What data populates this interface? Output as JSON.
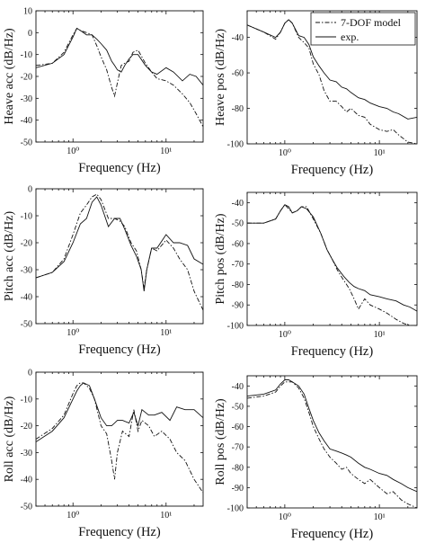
{
  "legend": {
    "model": "7-DOF model",
    "exp": "exp."
  },
  "chart_data": [
    {
      "type": "line",
      "ylabel": "Heave acc (dB/Hz)",
      "xlabel": "Frequency (Hz)",
      "xscale": "log",
      "xlim": [
        0.4,
        25
      ],
      "ylim": [
        -50,
        10
      ],
      "yticks": [
        -50,
        -40,
        -30,
        -20,
        -10,
        0,
        10
      ],
      "xticks": [
        {
          "value": 1,
          "label": "10⁰"
        },
        {
          "value": 10,
          "label": "10¹"
        }
      ],
      "series": [
        {
          "key": "model",
          "x": [
            0.4,
            0.6,
            0.8,
            1.0,
            1.1,
            1.2,
            1.4,
            1.6,
            1.8,
            2.0,
            2.3,
            2.6,
            2.8,
            3.0,
            3.3,
            3.6,
            4.0,
            4.4,
            5.0,
            6.0,
            7.0,
            8.0,
            10,
            12,
            15,
            18,
            21,
            25
          ],
          "y": [
            -15,
            -14,
            -9,
            -1,
            2,
            1,
            0,
            -1,
            -6,
            -11,
            -17,
            -25,
            -29,
            -23,
            -15,
            -14,
            -13,
            -9,
            -8,
            -14,
            -18,
            -21,
            -22,
            -24,
            -28,
            -32,
            -37,
            -43
          ]
        },
        {
          "key": "exp",
          "x": [
            0.4,
            0.6,
            0.8,
            1.0,
            1.1,
            1.2,
            1.4,
            1.6,
            1.8,
            2.0,
            2.3,
            2.6,
            2.8,
            3.0,
            3.3,
            3.6,
            4.0,
            4.4,
            5.0,
            6.0,
            7.0,
            8.0,
            10,
            12,
            15,
            18,
            21,
            25
          ],
          "y": [
            -16,
            -14,
            -10,
            -2,
            2,
            1,
            -1,
            -1,
            -3,
            -5,
            -8,
            -13,
            -15,
            -17,
            -18,
            -15,
            -12,
            -10,
            -10,
            -15,
            -18,
            -19,
            -16,
            -18,
            -22,
            -19,
            -20,
            -24
          ]
        }
      ]
    },
    {
      "type": "line",
      "ylabel": "Heave pos (dB/Hz)",
      "xlabel": "Frequency (Hz)",
      "xscale": "log",
      "xlim": [
        0.4,
        25
      ],
      "ylim": [
        -100,
        -25
      ],
      "yticks": [
        -100,
        -80,
        -60,
        -40
      ],
      "xticks": [
        {
          "value": 1,
          "label": "10⁰"
        },
        {
          "value": 10,
          "label": "10¹"
        }
      ],
      "series": [
        {
          "key": "model",
          "x": [
            0.4,
            0.6,
            0.8,
            0.9,
            1.0,
            1.1,
            1.2,
            1.4,
            1.6,
            1.8,
            2.0,
            2.3,
            2.6,
            3.0,
            3.5,
            4.0,
            4.5,
            5.0,
            6.0,
            7.0,
            8.0,
            10,
            12,
            14,
            16,
            20,
            25
          ],
          "y": [
            -33,
            -37,
            -41,
            -37,
            -32,
            -30,
            -32,
            -40,
            -43,
            -46,
            -55,
            -61,
            -70,
            -76,
            -76,
            -79,
            -82,
            -80,
            -84,
            -85,
            -89,
            -92,
            -93,
            -92,
            -95,
            -99,
            -100
          ]
        },
        {
          "key": "exp",
          "x": [
            0.4,
            0.6,
            0.8,
            0.9,
            1.0,
            1.1,
            1.2,
            1.4,
            1.6,
            1.8,
            2.0,
            2.3,
            2.6,
            3.0,
            3.5,
            4.0,
            4.5,
            5.0,
            6.0,
            7.0,
            8.0,
            10,
            12,
            14,
            16,
            20,
            25
          ],
          "y": [
            -33,
            -37,
            -40,
            -37,
            -32,
            -30,
            -32,
            -39,
            -40,
            -44,
            -51,
            -56,
            -60,
            -64,
            -65,
            -68,
            -69,
            -71,
            -74,
            -75,
            -77,
            -79,
            -80,
            -82,
            -83,
            -86,
            -85
          ]
        }
      ]
    },
    {
      "type": "line",
      "ylabel": "Pitch acc (dB/Hz)",
      "xlabel": "Frequency (Hz)",
      "xscale": "log",
      "xlim": [
        0.4,
        25
      ],
      "ylim": [
        -50,
        0
      ],
      "yticks": [
        -50,
        -40,
        -30,
        -20,
        -10,
        0
      ],
      "xticks": [
        {
          "value": 1,
          "label": "10⁰"
        },
        {
          "value": 10,
          "label": "10¹"
        }
      ],
      "series": [
        {
          "key": "model",
          "x": [
            0.4,
            0.6,
            0.8,
            1.0,
            1.2,
            1.4,
            1.6,
            1.8,
            2.0,
            2.4,
            2.8,
            3.2,
            3.6,
            4.2,
            4.8,
            5.4,
            5.8,
            6.2,
            7.0,
            8.0,
            10,
            12,
            14,
            17,
            20,
            25
          ],
          "y": [
            -33,
            -31,
            -26,
            -17,
            -9,
            -6,
            -3,
            -2,
            -4,
            -11,
            -11,
            -12,
            -14,
            -20,
            -23,
            -30,
            -37,
            -30,
            -22,
            -23,
            -19,
            -22,
            -26,
            -30,
            -38,
            -45
          ]
        },
        {
          "key": "exp",
          "x": [
            0.4,
            0.6,
            0.8,
            1.0,
            1.2,
            1.4,
            1.6,
            1.8,
            2.0,
            2.4,
            2.8,
            3.2,
            3.6,
            4.2,
            4.8,
            5.4,
            5.8,
            6.2,
            7.0,
            8.0,
            10,
            12,
            14,
            17,
            20,
            25
          ],
          "y": [
            -33,
            -31,
            -27,
            -20,
            -13,
            -11,
            -5,
            -3,
            -6,
            -14,
            -11,
            -11,
            -15,
            -21,
            -25,
            -30,
            -38,
            -30,
            -22,
            -22,
            -17,
            -20,
            -20,
            -21,
            -26,
            -28
          ]
        }
      ]
    },
    {
      "type": "line",
      "ylabel": "Pitch pos (dB/Hz)",
      "xlabel": "Frequency (Hz)",
      "xscale": "log",
      "xlim": [
        0.4,
        25
      ],
      "ylim": [
        -100,
        -35
      ],
      "yticks": [
        -100,
        -90,
        -80,
        -70,
        -60,
        -50,
        -40
      ],
      "xticks": [
        {
          "value": 1,
          "label": "10⁰"
        },
        {
          "value": 10,
          "label": "10¹"
        }
      ],
      "series": [
        {
          "key": "model",
          "x": [
            0.4,
            0.6,
            0.8,
            0.9,
            1.0,
            1.1,
            1.2,
            1.35,
            1.5,
            1.7,
            2.0,
            2.4,
            2.8,
            3.2,
            3.6,
            4.2,
            4.8,
            5.4,
            6.0,
            7.0,
            8.0,
            10,
            12,
            15,
            18,
            21,
            25
          ],
          "y": [
            -50,
            -50,
            -48,
            -44,
            -41,
            -43,
            -45,
            -44,
            -42,
            -42,
            -48,
            -55,
            -63,
            -68,
            -73,
            -78,
            -82,
            -87,
            -92,
            -87,
            -90,
            -92,
            -94,
            -97,
            -99,
            -100,
            -100
          ]
        },
        {
          "key": "exp",
          "x": [
            0.4,
            0.6,
            0.8,
            0.9,
            1.0,
            1.1,
            1.2,
            1.35,
            1.5,
            1.7,
            2.0,
            2.4,
            2.8,
            3.2,
            3.6,
            4.2,
            4.8,
            5.4,
            6.0,
            7.0,
            8.0,
            10,
            12,
            15,
            18,
            21,
            25
          ],
          "y": [
            -50,
            -50,
            -48,
            -44,
            -41,
            -42,
            -45,
            -44,
            -42,
            -43,
            -47,
            -55,
            -63,
            -68,
            -72,
            -76,
            -79,
            -81,
            -82,
            -83,
            -85,
            -86,
            -87,
            -88,
            -90,
            -91,
            -93
          ]
        }
      ]
    },
    {
      "type": "line",
      "ylabel": "Roll acc (dB/Hz)",
      "xlabel": "Frequency (Hz)",
      "xscale": "log",
      "xlim": [
        0.4,
        25
      ],
      "ylim": [
        -50,
        0
      ],
      "yticks": [
        -50,
        -40,
        -30,
        -20,
        -10,
        0
      ],
      "xticks": [
        {
          "value": 1,
          "label": "10⁰"
        },
        {
          "value": 10,
          "label": "10¹"
        }
      ],
      "series": [
        {
          "key": "model",
          "x": [
            0.4,
            0.6,
            0.8,
            1.0,
            1.1,
            1.2,
            1.3,
            1.5,
            1.7,
            2.0,
            2.3,
            2.6,
            2.8,
            3.0,
            3.4,
            4.0,
            4.5,
            5.0,
            5.5,
            6.5,
            7.5,
            9,
            11,
            13,
            16,
            20,
            25
          ],
          "y": [
            -25,
            -21,
            -16,
            -8,
            -5,
            -4,
            -4,
            -6,
            -10,
            -20,
            -23,
            -33,
            -40,
            -30,
            -22,
            -24,
            -14,
            -22,
            -18,
            -20,
            -24,
            -22,
            -25,
            -30,
            -33,
            -40,
            -45
          ]
        },
        {
          "key": "exp",
          "x": [
            0.4,
            0.6,
            0.8,
            1.0,
            1.1,
            1.2,
            1.3,
            1.5,
            1.7,
            2.0,
            2.3,
            2.6,
            2.8,
            3.0,
            3.4,
            4.0,
            4.5,
            5.0,
            5.5,
            6.5,
            7.5,
            9,
            11,
            13,
            16,
            20,
            25
          ],
          "y": [
            -26,
            -22,
            -17,
            -10,
            -7,
            -5,
            -4,
            -5,
            -10,
            -17,
            -20,
            -20,
            -19,
            -18,
            -18,
            -19,
            -15,
            -20,
            -14,
            -16,
            -16,
            -15,
            -18,
            -13,
            -14,
            -14,
            -17
          ]
        }
      ]
    },
    {
      "type": "line",
      "ylabel": "Roll pos (dB/Hz)",
      "xlabel": "Frequency (Hz)",
      "xscale": "log",
      "xlim": [
        0.4,
        25
      ],
      "ylim": [
        -100,
        -35
      ],
      "yticks": [
        -100,
        -90,
        -80,
        -70,
        -60,
        -50,
        -40
      ],
      "xticks": [
        {
          "value": 1,
          "label": "10⁰"
        },
        {
          "value": 10,
          "label": "10¹"
        }
      ],
      "series": [
        {
          "key": "model",
          "x": [
            0.4,
            0.6,
            0.8,
            0.9,
            1.0,
            1.1,
            1.2,
            1.4,
            1.6,
            1.8,
            2.0,
            2.3,
            2.6,
            3.0,
            3.5,
            4.0,
            4.5,
            5.0,
            6.0,
            7.0,
            8.0,
            10,
            12,
            14,
            17,
            20,
            25
          ],
          "y": [
            -46,
            -45,
            -43,
            -40,
            -38,
            -38,
            -38,
            -41,
            -46,
            -53,
            -60,
            -66,
            -71,
            -75,
            -78,
            -81,
            -80,
            -83,
            -86,
            -88,
            -86,
            -90,
            -93,
            -92,
            -96,
            -98,
            -100
          ]
        },
        {
          "key": "exp",
          "x": [
            0.4,
            0.6,
            0.8,
            0.9,
            1.0,
            1.1,
            1.2,
            1.4,
            1.6,
            1.8,
            2.0,
            2.3,
            2.6,
            3.0,
            3.5,
            4.0,
            4.5,
            5.0,
            6.0,
            7.0,
            8.0,
            10,
            12,
            14,
            17,
            20,
            25
          ],
          "y": [
            -45,
            -44,
            -42,
            -39,
            -37,
            -37,
            -38,
            -40,
            -44,
            -51,
            -57,
            -63,
            -67,
            -71,
            -72,
            -73,
            -74,
            -75,
            -78,
            -80,
            -81,
            -83,
            -84,
            -86,
            -88,
            -90,
            -92
          ]
        }
      ]
    }
  ]
}
